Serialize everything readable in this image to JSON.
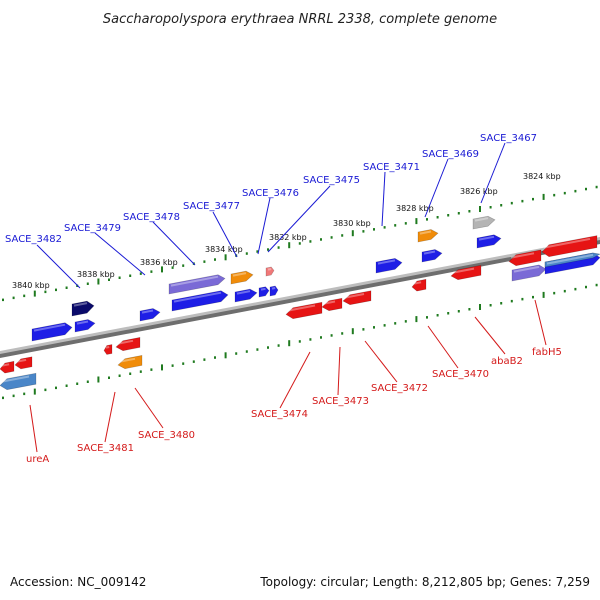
{
  "title": "Saccharopolyspora erythraea NRRL 2338, complete genome",
  "footer": {
    "accession": "Accession: NC_009142",
    "topology": "Topology: circular; Length: 8,212,805 bp; Genes: 7,259"
  },
  "colors": {
    "forward_label": "#1a1ad4",
    "reverse_label": "#d41a1a",
    "backbone": "#8a8a8a",
    "ticks": "#1f7a1f",
    "gene_blue": "#1e1ee6",
    "gene_red": "#e61414",
    "gene_orange": "#f08c0a",
    "gene_purple": "#7a6ad6",
    "gene_navy": "#0a0a6a",
    "gene_steel": "#4a86c8",
    "gene_gray": "#b4b4b4",
    "gene_pink": "#f07878"
  },
  "scale_labels": [
    "3840 kbp",
    "3838 kbp",
    "3836 kbp",
    "3834 kbp",
    "3832 kbp",
    "3830 kbp",
    "3828 kbp",
    "3826 kbp",
    "3824 kbp"
  ],
  "forward_labels": [
    "SACE_3482",
    "SACE_3479",
    "SACE_3478",
    "SACE_3477",
    "SACE_3476",
    "SACE_3475",
    "SACE_3471",
    "SACE_3469",
    "SACE_3467"
  ],
  "reverse_labels": [
    "ureA",
    "SACE_3481",
    "SACE_3480",
    "SACE_3474",
    "SACE_3473",
    "SACE_3472",
    "SACE_3470",
    "abaB2",
    "fabH5"
  ]
}
